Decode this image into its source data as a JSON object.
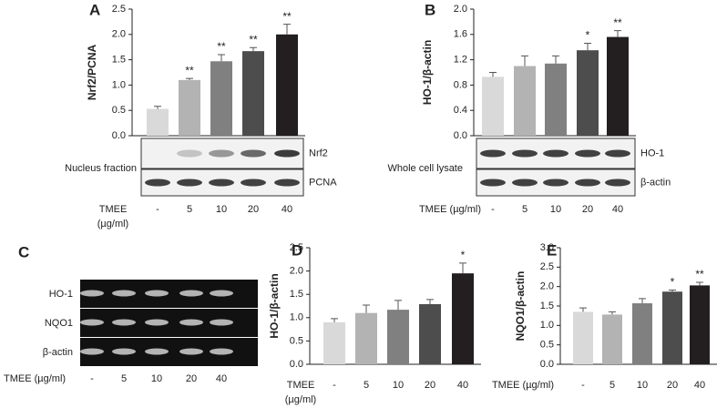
{
  "chart_data": [
    {
      "type": "bar",
      "panel": "A",
      "y_label": "Nrf2/PCNA",
      "x_label": "TMEE (µg/ml)",
      "categories": [
        "-",
        "5",
        "10",
        "20",
        "40"
      ],
      "values": [
        0.53,
        1.1,
        1.47,
        1.67,
        2.0
      ],
      "errors": [
        0.05,
        0.03,
        0.13,
        0.07,
        0.2
      ],
      "value_labels": [
        null,
        "**",
        "**",
        "**",
        "**"
      ],
      "colors": [
        "#d9d9d9",
        "#b3b3b3",
        "#808080",
        "#4d4d4d",
        "#231f20"
      ],
      "ylim": [
        0,
        2.5
      ],
      "yticks": [
        {
          "value": 0,
          "label": "0.0"
        },
        0.5,
        {
          "value": 1,
          "label": "1.0"
        },
        1.5,
        {
          "value": 2,
          "label": "2.0"
        },
        2.5
      ]
    },
    {
      "type": "bar",
      "panel": "B",
      "y_label": "HO-1/β-actin",
      "x_label": "TMEE (µg/ml)",
      "categories": [
        "-",
        "5",
        "10",
        "20",
        "40"
      ],
      "values": [
        0.93,
        1.1,
        1.14,
        1.35,
        1.56
      ],
      "errors": [
        0.07,
        0.16,
        0.12,
        0.11,
        0.1
      ],
      "value_labels": [
        null,
        null,
        null,
        "*",
        "**"
      ],
      "colors": [
        "#d9d9d9",
        "#b3b3b3",
        "#808080",
        "#4d4d4d",
        "#231f20"
      ],
      "ylim": [
        0,
        2.0
      ],
      "yticks": [
        {
          "value": 0,
          "label": "0.0"
        },
        0.4,
        0.8,
        1.2,
        1.6,
        {
          "value": 2,
          "label": "2.0"
        }
      ]
    },
    {
      "type": "bar",
      "panel": "D",
      "y_label": "HO-1/β-actin",
      "x_label": "TMEE (µg/ml)",
      "categories": [
        "-",
        "5",
        "10",
        "20",
        "40"
      ],
      "values": [
        0.9,
        1.1,
        1.17,
        1.29,
        1.95
      ],
      "errors": [
        0.08,
        0.17,
        0.2,
        0.1,
        0.22
      ],
      "value_labels": [
        null,
        null,
        null,
        null,
        "*"
      ],
      "colors": [
        "#d9d9d9",
        "#b3b3b3",
        "#808080",
        "#4d4d4d",
        "#231f20"
      ],
      "ylim": [
        0,
        2.5
      ],
      "yticks": [
        {
          "value": 0,
          "label": "0.0"
        },
        0.5,
        {
          "value": 1,
          "label": "1.0"
        },
        1.5,
        {
          "value": 2,
          "label": "2.0"
        },
        2.5
      ]
    },
    {
      "type": "bar",
      "panel": "E",
      "y_label": "NQO1/β-actin",
      "x_label": "TMEE (µg/ml)",
      "categories": [
        "-",
        "5",
        "10",
        "20",
        "40"
      ],
      "values": [
        1.35,
        1.28,
        1.57,
        1.87,
        2.03
      ],
      "errors": [
        0.1,
        0.07,
        0.12,
        0.04,
        0.08
      ],
      "value_labels": [
        null,
        null,
        null,
        "*",
        "**"
      ],
      "colors": [
        "#d9d9d9",
        "#b3b3b3",
        "#808080",
        "#4d4d4d",
        "#231f20"
      ],
      "ylim": [
        0,
        3.0
      ],
      "yticks": [
        {
          "value": 0,
          "label": "0.0"
        },
        0.5,
        {
          "value": 1,
          "label": "1.0"
        },
        1.5,
        {
          "value": 2,
          "label": "2.0"
        },
        2.5,
        {
          "value": 3,
          "label": "3.0"
        }
      ]
    }
  ],
  "blots": {
    "A": {
      "side_label": "Nucleus fraction",
      "bands": [
        "Nrf2",
        "PCNA"
      ]
    },
    "B": {
      "side_label": "Whole cell lysate",
      "bands": [
        "HO-1",
        "β-actin"
      ]
    },
    "C": {
      "panel": "C",
      "bands": [
        "HO-1",
        "NQO1",
        "β-actin"
      ],
      "x_label": "TMEE (µg/ml)",
      "categories": [
        "-",
        "5",
        "10",
        "20",
        "40"
      ]
    }
  }
}
